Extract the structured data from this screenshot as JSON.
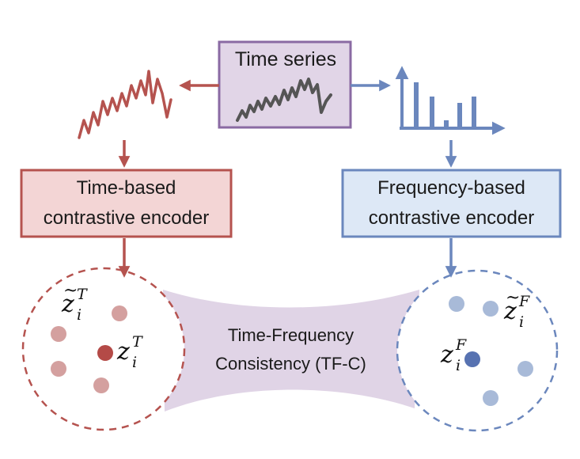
{
  "time_series_box": {
    "label": "Time series"
  },
  "time_encoder": {
    "line1": "Time-based",
    "line2": "contrastive encoder"
  },
  "frequency_encoder": {
    "line1": "Frequency-based",
    "line2": "contrastive encoder"
  },
  "consistency": {
    "line1": "Time-Frequency",
    "line2": "Consistency (TF-C)"
  },
  "math": {
    "base": "z",
    "subscript": "i",
    "time_superscript": "T",
    "freq_superscript": "F",
    "tilde": "~"
  },
  "colors": {
    "time": "#b5534f",
    "time_fill": "#f3d5d5",
    "time_dot": "#d4a09f",
    "time_dot_anchor": "#b44a47",
    "frequency": "#6b87bd",
    "frequency_fill": "#dde8f6",
    "frequency_dot": "#a8bad8",
    "frequency_dot_anchor": "#5772b1",
    "series_box": "#8a6aa3",
    "series_fill": "#e1d5e7",
    "series_line": "#555555",
    "consistency_fill": "#e0d4e6"
  }
}
